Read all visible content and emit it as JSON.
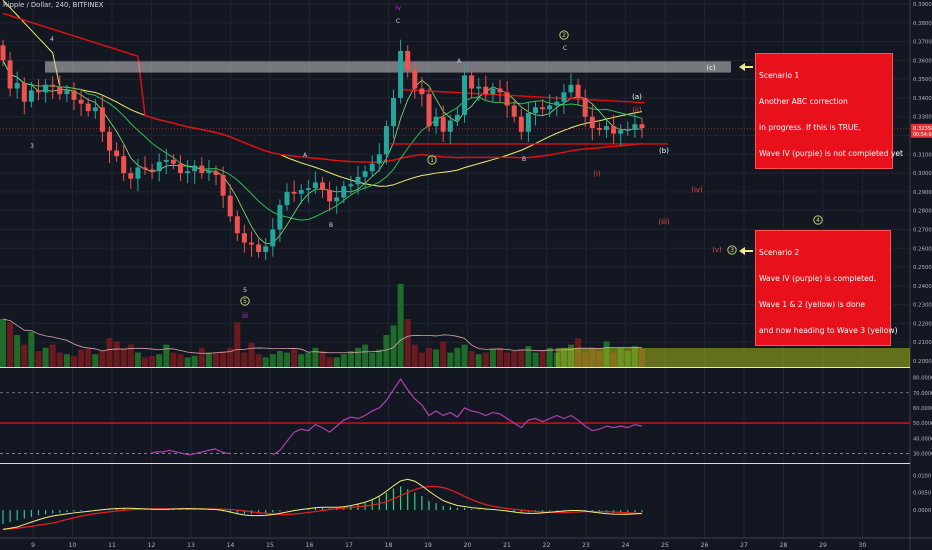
{
  "header": {
    "title": "Ripple / Dollar, 240, BITFINEX"
  },
  "scenario1": {
    "lines": [
      "Scenario 1",
      "Another ABC correction",
      "in progress. If this is TRUE,",
      "Wave IV (purple) is not completed yet"
    ]
  },
  "scenario2": {
    "lines": [
      "Scenario 2",
      "Wave IV (purple) is completed.",
      "Wave 1 & 2 (yellow) is done",
      "and now heading to Wave 3 (yellow)"
    ]
  },
  "colors": {
    "background": "#131722",
    "up": "#26a69a",
    "down": "#ef5350",
    "ma_red": "#e01010",
    "ma_yellow": "#f0ec6e",
    "ma_green": "#2fbf55",
    "ma_lime": "#8fe37a",
    "rsi": "#b040b0",
    "annot_red": "#e94c4c",
    "annot_yellow": "#c9e07a",
    "purple": "#b030d0"
  },
  "chart_data": [
    {
      "type": "candlestick",
      "title": "Ripple / Dollar, 240, BITFINEX",
      "x_ticks": [
        "9",
        "10",
        "11",
        "12",
        "13",
        "14",
        "15",
        "16",
        "17",
        "18",
        "19",
        "20",
        "21",
        "22",
        "23",
        "24",
        "25",
        "26",
        "27",
        "28",
        "29",
        "30"
      ],
      "ylim": [
        0.195,
        0.395
      ],
      "y_ticks": [
        "0.39000",
        "0.38000",
        "0.37000",
        "0.36000",
        "0.35000",
        "0.34000",
        "0.33000",
        "0.32000",
        "0.31000",
        "0.30000",
        "0.29000",
        "0.28000",
        "0.27000",
        "0.26000",
        "0.25000",
        "0.24000",
        "0.23000",
        "0.22000",
        "0.21000",
        "0.20000"
      ],
      "last_price": "0.32358",
      "countdown": "00:54:00",
      "closes": [
        0.36,
        0.345,
        0.348,
        0.338,
        0.344,
        0.343,
        0.347,
        0.346,
        0.342,
        0.344,
        0.339,
        0.337,
        0.333,
        0.335,
        0.322,
        0.312,
        0.309,
        0.3,
        0.297,
        0.303,
        0.302,
        0.301,
        0.306,
        0.307,
        0.305,
        0.3,
        0.301,
        0.304,
        0.3,
        0.301,
        0.299,
        0.288,
        0.277,
        0.268,
        0.263,
        0.262,
        0.258,
        0.261,
        0.27,
        0.283,
        0.29,
        0.289,
        0.291,
        0.292,
        0.295,
        0.291,
        0.285,
        0.287,
        0.293,
        0.294,
        0.298,
        0.301,
        0.305,
        0.31,
        0.325,
        0.34,
        0.365,
        0.355,
        0.345,
        0.342,
        0.325,
        0.33,
        0.322,
        0.328,
        0.331,
        0.352,
        0.345,
        0.346,
        0.342,
        0.345,
        0.343,
        0.336,
        0.33,
        0.322,
        0.332,
        0.335,
        0.334,
        0.336,
        0.338,
        0.343,
        0.347,
        0.34,
        0.33,
        0.324,
        0.323,
        0.325,
        0.321,
        0.323,
        0.323,
        0.326,
        0.324
      ],
      "annotations": {
        "purple": [
          "iv",
          "iii"
        ],
        "red": [
          "(a)",
          "(b)",
          "(c)",
          "(ii)",
          "(i)",
          "(iv)",
          "(iii)",
          "(v)"
        ],
        "white": [
          "4",
          "3",
          "5",
          "A",
          "B",
          "C",
          "A",
          "B",
          "C"
        ],
        "yellow_circled": [
          "1",
          "2",
          "3",
          "4",
          "5",
          "5"
        ]
      }
    },
    {
      "type": "bar",
      "title": "Volume",
      "values": [
        30,
        28,
        20,
        14,
        22,
        10,
        12,
        14,
        9,
        8,
        7,
        11,
        12,
        8,
        10,
        18,
        16,
        12,
        14,
        9,
        6,
        7,
        8,
        14,
        9,
        8,
        6,
        7,
        12,
        9,
        9,
        10,
        12,
        28,
        9,
        15,
        8,
        6,
        8,
        10,
        9,
        11,
        8,
        9,
        12,
        10,
        6,
        6,
        8,
        10,
        12,
        14,
        9,
        11,
        20,
        26,
        52,
        30,
        14,
        9,
        12,
        11,
        16,
        9,
        12,
        14,
        10,
        8,
        9,
        11,
        12,
        9,
        10,
        11,
        13,
        9,
        10,
        12,
        9,
        12,
        14,
        18,
        9,
        12,
        10,
        16,
        9,
        12,
        10,
        13,
        11
      ]
    },
    {
      "type": "line",
      "title": "RSI",
      "ylim": [
        25,
        85
      ],
      "y_ticks": [
        "80.0000",
        "70.0000",
        "60.0000",
        "50.0000",
        "40.0000",
        "30.0000"
      ],
      "values": [
        null,
        null,
        null,
        null,
        null,
        null,
        null,
        null,
        null,
        null,
        null,
        null,
        null,
        null,
        null,
        null,
        null,
        null,
        null,
        null,
        null,
        null,
        null,
        null,
        null,
        null,
        null,
        null,
        null,
        null,
        null,
        null,
        null,
        null,
        null,
        null,
        null,
        null,
        29,
        32,
        38,
        44,
        46,
        45,
        49,
        47,
        44,
        48,
        52,
        54,
        53,
        55,
        58,
        60,
        65,
        72,
        79,
        72,
        66,
        62,
        55,
        58,
        55,
        57,
        54,
        60,
        58,
        57,
        55,
        57,
        56,
        53,
        50,
        47,
        52,
        53,
        51,
        53,
        55,
        53,
        55,
        52,
        48,
        45,
        46,
        48,
        47,
        48,
        47,
        49,
        48
      ],
      "early_values": [
        30,
        31,
        31,
        32,
        31,
        30,
        29,
        30,
        31,
        32,
        33,
        31,
        30
      ]
    },
    {
      "type": "histogram",
      "title": "MACD",
      "ylim": [
        -0.0075,
        0.013
      ],
      "y_ticks": [
        "0.0100",
        "0.0050",
        "0.0000"
      ],
      "histogram": [
        -0.004,
        -0.0035,
        -0.003,
        -0.0025,
        -0.002,
        -0.0015,
        -0.0012,
        -0.001,
        -0.0008,
        -0.0006,
        -0.0004,
        -0.0003,
        -0.0001,
        0.0001,
        0.0002,
        0.0003,
        0.0004,
        0.0004,
        0.0003,
        0.0002,
        0.0002,
        0.0001,
        0.0001,
        0.0002,
        0.0003,
        0.0003,
        0.0003,
        0.0002,
        0.0002,
        0.0001,
        0.0,
        -0.0004,
        -0.0008,
        -0.0011,
        -0.0012,
        -0.0012,
        -0.0011,
        -0.001,
        -0.0007,
        -0.0004,
        -0.0001,
        0.0001,
        0.0003,
        0.0005,
        0.0006,
        0.0006,
        0.0005,
        0.0006,
        0.0009,
        0.0012,
        0.0016,
        0.002,
        0.0028,
        0.0038,
        0.005,
        0.0062,
        0.0068,
        0.006,
        0.005,
        0.004,
        0.0026,
        0.002,
        0.0012,
        0.001,
        0.0006,
        0.0006,
        0.0003,
        0.0002,
        0.0001,
        0.0,
        -0.0002,
        -0.0004,
        -0.0006,
        -0.0008,
        -0.0007,
        -0.0006,
        -0.0005,
        -0.0003,
        -0.0002,
        -0.0001,
        0.0,
        -0.0002,
        -0.0004,
        -0.0006,
        -0.0008,
        -0.0008,
        -0.0009,
        -0.0009,
        -0.0008,
        -0.0007,
        -0.0006
      ]
    }
  ]
}
